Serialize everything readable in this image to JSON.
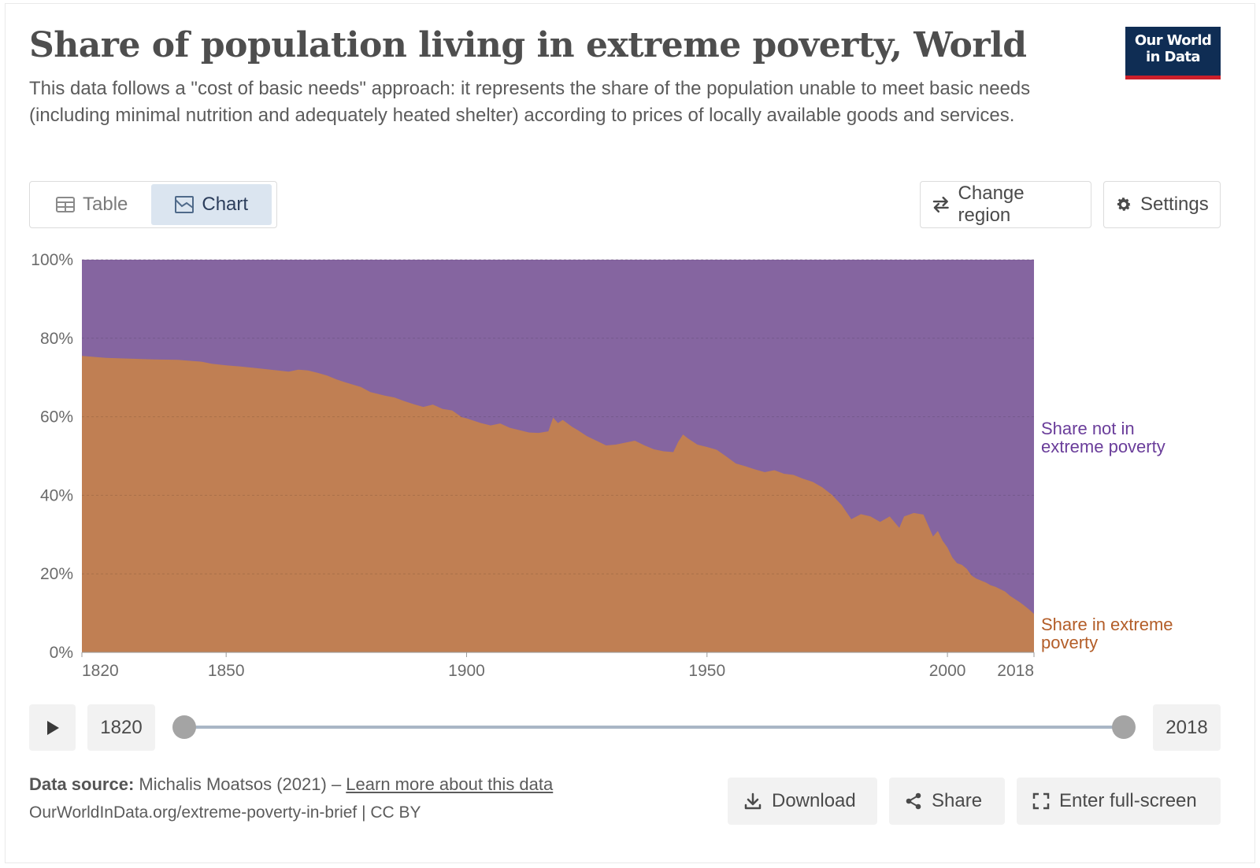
{
  "header": {
    "title": "Share of population living in extreme poverty, World",
    "subtitle": "This data follows a \"cost of basic needs\" approach: it represents the share of the population unable to meet basic needs (including minimal nutrition and adequately heated shelter) according to prices of locally available goods and services.",
    "logo_line1": "Our World",
    "logo_line2": "in Data"
  },
  "tabs": [
    {
      "label": "Table",
      "icon": "table-icon"
    },
    {
      "label": "Chart",
      "icon": "chart-icon",
      "active": true
    }
  ],
  "controls": {
    "change_region": "Change region",
    "settings": "Settings"
  },
  "colors": {
    "in_poverty": "#c07f53",
    "not_in_poverty": "#8565a0",
    "in_poverty_label": "#b35d28",
    "not_in_poverty_label": "#6a3d9a"
  },
  "chart_data": {
    "type": "area",
    "stacked": true,
    "x_start": 1820,
    "x_end": 2018,
    "ylim": [
      0,
      100
    ],
    "y_unit": "%",
    "yticks": [
      "0%",
      "20%",
      "40%",
      "60%",
      "80%",
      "100%"
    ],
    "ytick_values": [
      0,
      20,
      40,
      60,
      80,
      100
    ],
    "xticks": [
      "1820",
      "1850",
      "1900",
      "1950",
      "2000",
      "2018"
    ],
    "xtick_values": [
      1820,
      1850,
      1900,
      1950,
      2000,
      2018
    ],
    "grid": true,
    "series": [
      {
        "name": "Share in extreme poverty",
        "x": [
          1820,
          1822,
          1825,
          1830,
          1835,
          1840,
          1843,
          1845,
          1847,
          1850,
          1853,
          1857,
          1860,
          1863,
          1865,
          1867,
          1869,
          1871,
          1873,
          1875,
          1878,
          1880,
          1883,
          1885,
          1887,
          1889,
          1891,
          1893,
          1895,
          1897,
          1899,
          1900,
          1903,
          1905,
          1907,
          1909,
          1911,
          1913,
          1915,
          1917,
          1918,
          1919,
          1920,
          1921,
          1922,
          1923,
          1925,
          1927,
          1929,
          1931,
          1933,
          1935,
          1937,
          1939,
          1941,
          1943,
          1944,
          1945,
          1946,
          1948,
          1950,
          1952,
          1954,
          1956,
          1958,
          1960,
          1962,
          1964,
          1966,
          1968,
          1970,
          1972,
          1974,
          1976,
          1978,
          1980,
          1982,
          1984,
          1986,
          1988,
          1990,
          1991,
          1993,
          1995,
          1996,
          1997,
          1998,
          1999,
          2000,
          2001,
          2002,
          2003,
          2004,
          2005,
          2006,
          2007,
          2008,
          2009,
          2010,
          2011,
          2012,
          2013,
          2014,
          2015,
          2016,
          2017,
          2018
        ],
        "values": [
          75.5,
          75.3,
          75.0,
          74.8,
          74.6,
          74.5,
          74.2,
          74.0,
          73.5,
          73.1,
          72.8,
          72.3,
          71.9,
          71.5,
          72.0,
          71.8,
          71.2,
          70.5,
          69.5,
          68.7,
          67.6,
          66.3,
          65.4,
          64.9,
          64.0,
          63.2,
          62.5,
          63.1,
          62.0,
          61.6,
          59.9,
          59.6,
          58.4,
          57.8,
          58.3,
          57.2,
          56.6,
          56.0,
          55.9,
          56.3,
          59.8,
          58.4,
          59.2,
          58.3,
          57.4,
          56.7,
          55.1,
          53.9,
          52.7,
          52.9,
          53.4,
          53.9,
          52.7,
          51.7,
          51.2,
          51.0,
          53.6,
          55.5,
          54.5,
          52.9,
          52.3,
          51.6,
          49.9,
          48.1,
          47.4,
          46.6,
          45.9,
          46.4,
          45.5,
          45.2,
          44.2,
          43.4,
          42.0,
          40.1,
          37.5,
          33.9,
          35.2,
          34.6,
          33.2,
          34.6,
          31.7,
          34.6,
          35.5,
          35.1,
          32.3,
          29.5,
          30.9,
          28.4,
          26.7,
          24.2,
          22.7,
          22.3,
          21.3,
          19.6,
          18.8,
          18.3,
          17.8,
          17.1,
          16.7,
          16.1,
          15.5,
          14.4,
          13.6,
          12.8,
          11.9,
          10.9,
          9.8
        ]
      },
      {
        "name": "Share not in extreme poverty",
        "value_note": "fills to 100%"
      }
    ],
    "series_labels": {
      "in_poverty": [
        "Share in extreme",
        "poverty"
      ],
      "not_in_poverty": [
        "Share not in",
        "extreme poverty"
      ]
    }
  },
  "timeline": {
    "start_year": "1820",
    "end_year": "2018"
  },
  "footer": {
    "source_label": "Data source:",
    "source_text": "Michalis Moatsos (2021) – ",
    "source_link": "Learn more about this data",
    "url": "OurWorldInData.org/extreme-poverty-in-brief | CC BY",
    "download": "Download",
    "share": "Share",
    "fullscreen": "Enter full-screen"
  }
}
